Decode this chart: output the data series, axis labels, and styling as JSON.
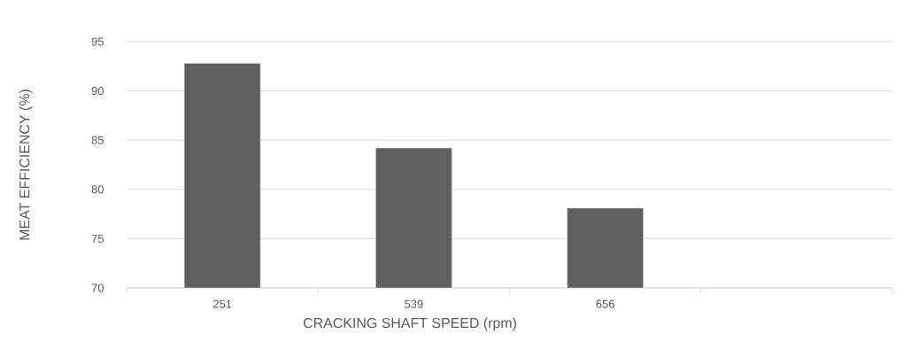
{
  "chart_data": {
    "type": "bar",
    "xlabel": "CRACKING SHAFT SPEED (rpm)",
    "ylabel": "MEAT EFFICIENCY (%)",
    "categories": [
      "251",
      "539",
      "656",
      null
    ],
    "values": [
      92.8,
      84.2,
      78.1,
      null
    ],
    "color": "#5f5f5f",
    "ylim": [
      70,
      95
    ],
    "yticks": [
      70,
      75,
      80,
      85,
      90,
      95
    ],
    "grid": "y"
  }
}
